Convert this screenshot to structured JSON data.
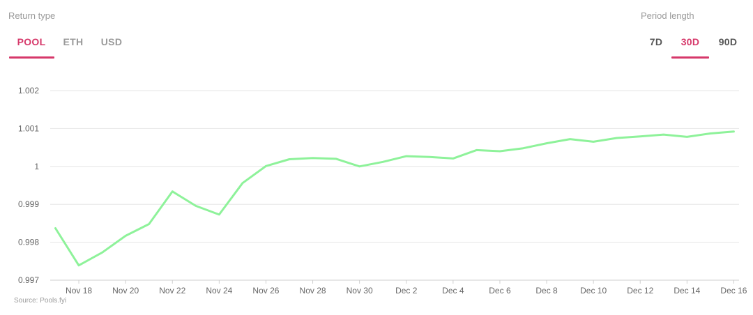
{
  "controls": {
    "return_type_label": "Return type",
    "return_tabs": [
      {
        "label": "POOL",
        "active": true
      },
      {
        "label": "ETH",
        "active": false
      },
      {
        "label": "USD",
        "active": false
      }
    ],
    "period_label": "Period length",
    "period_tabs": [
      {
        "label": "7D",
        "active": false
      },
      {
        "label": "30D",
        "active": true
      },
      {
        "label": "90D",
        "active": false
      }
    ]
  },
  "colors": {
    "accent": "#d6386a",
    "line": "#8ef29a",
    "grid": "#e6e6e6",
    "muted": "#9a9a9a"
  },
  "source": "Source: Pools.fyi",
  "chart_data": {
    "type": "line",
    "title": "",
    "xlabel": "",
    "ylabel": "",
    "ylim": [
      0.997,
      1.002
    ],
    "yticks": [
      "0.997",
      "0.998",
      "0.999",
      "1",
      "1.001",
      "1.002"
    ],
    "y_tick_values": [
      0.997,
      0.998,
      0.999,
      1.0,
      1.001,
      1.002
    ],
    "x_ticks": [
      "Nov 18",
      "Nov 20",
      "Nov 22",
      "Nov 24",
      "Nov 26",
      "Nov 28",
      "Nov 30",
      "Dec 2",
      "Dec 4",
      "Dec 6",
      "Dec 8",
      "Dec 10",
      "Dec 12",
      "Dec 14",
      "Dec 16"
    ],
    "grid": true,
    "series": [
      {
        "x": [
          "Nov 17",
          "Nov 18",
          "Nov 19",
          "Nov 20",
          "Nov 21",
          "Nov 22",
          "Nov 23",
          "Nov 24",
          "Nov 25",
          "Nov 26",
          "Nov 27",
          "Nov 28",
          "Nov 29",
          "Nov 30",
          "Dec 1",
          "Dec 2",
          "Dec 3",
          "Dec 4",
          "Dec 5",
          "Dec 6",
          "Dec 7",
          "Dec 8",
          "Dec 9",
          "Dec 10",
          "Dec 11",
          "Dec 12",
          "Dec 13",
          "Dec 14",
          "Dec 15",
          "Dec 16"
        ],
        "values": [
          0.99837,
          0.99739,
          0.99773,
          0.99817,
          0.99848,
          0.99934,
          0.99896,
          0.99873,
          0.99956,
          1.00001,
          1.00019,
          1.00022,
          1.0002,
          1.0,
          1.00012,
          1.00027,
          1.00025,
          1.00021,
          1.00043,
          1.0004,
          1.00048,
          1.00061,
          1.00072,
          1.00065,
          1.00075,
          1.00079,
          1.00084,
          1.00078,
          1.00087,
          1.00092
        ]
      }
    ]
  }
}
